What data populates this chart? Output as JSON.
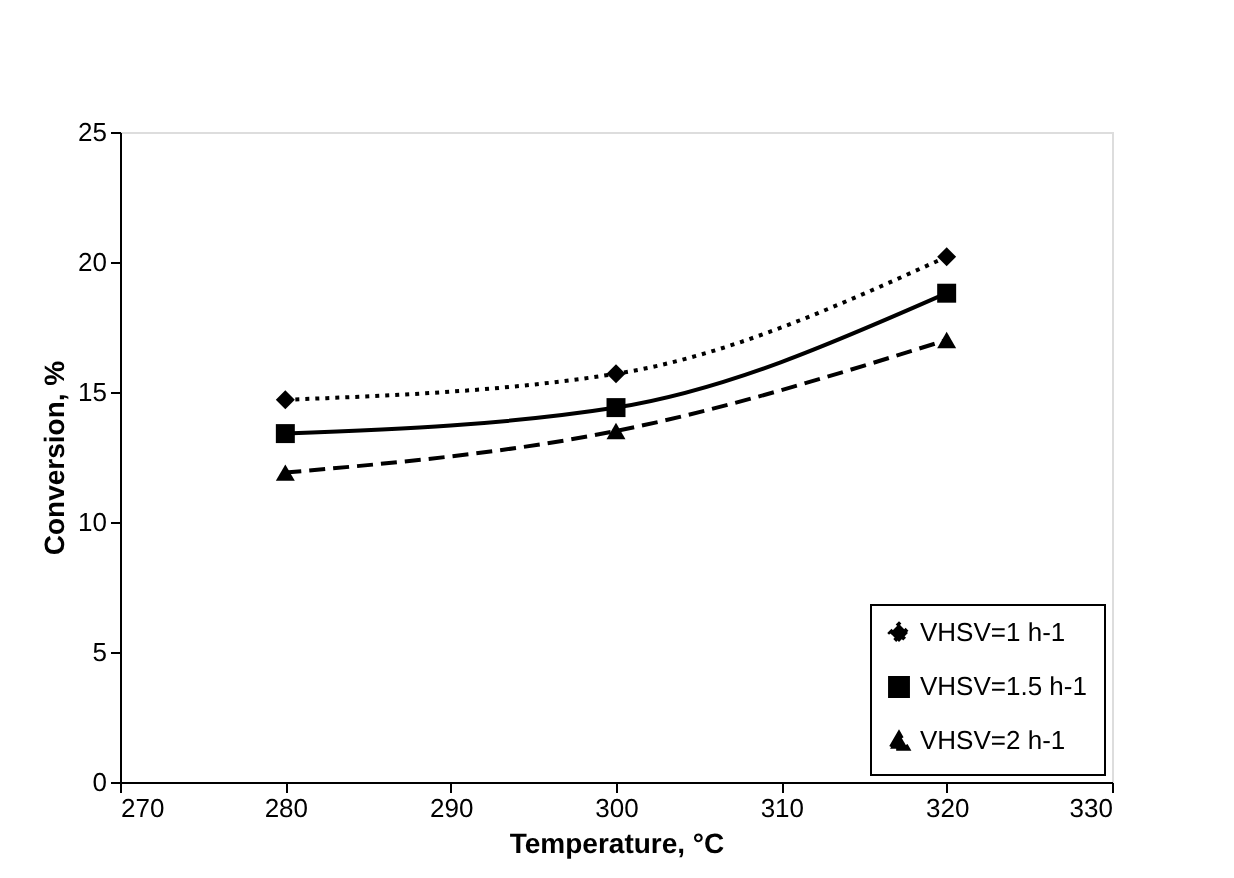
{
  "chart_data": {
    "type": "line",
    "xlabel": "Temperature, °C",
    "ylabel": "Conversion, %",
    "x": [
      280,
      300,
      320
    ],
    "series": [
      {
        "name": "VHSV=1 h-1",
        "color": "#000000",
        "values": [
          14.7,
          15.7,
          20.2
        ],
        "marker": "diamond",
        "line_style": "dotted"
      },
      {
        "name": "VHSV=1.5 h-1",
        "color": "#000000",
        "values": [
          13.4,
          14.4,
          18.8
        ],
        "marker": "square",
        "line_style": "solid"
      },
      {
        "name": "VHSV=2 h-1",
        "color": "#000000",
        "values": [
          11.9,
          13.5,
          17.0
        ],
        "marker": "triangle",
        "line_style": "dashed"
      }
    ],
    "xlim": [
      270,
      330
    ],
    "xticks": [
      270,
      280,
      290,
      300,
      310,
      320,
      330
    ],
    "ylim": [
      0,
      25
    ],
    "yticks": [
      0,
      5,
      10,
      15,
      20,
      25
    ],
    "grid": false,
    "legend": "bottom right"
  }
}
